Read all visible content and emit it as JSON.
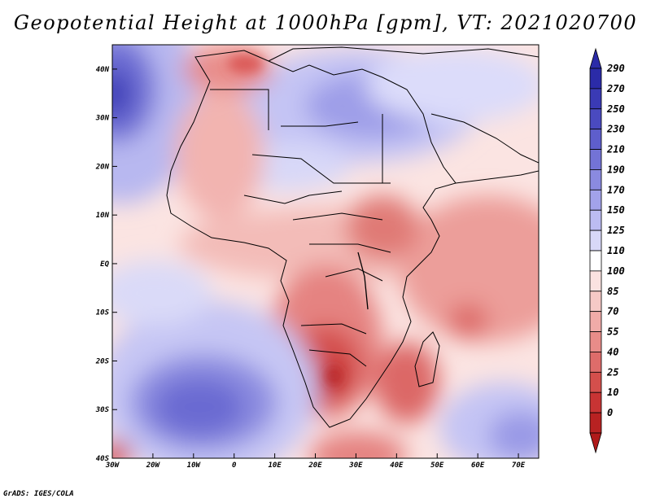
{
  "title": "Geopotential Height at 1000hPa [gpm], VT: 2021020700",
  "footer": "GrADS: IGES/COLA",
  "map": {
    "lon_range": [
      -30,
      75
    ],
    "lat_range": [
      -40,
      45
    ],
    "x_ticks": [
      {
        "lon": -30,
        "label": "30W"
      },
      {
        "lon": -20,
        "label": "20W"
      },
      {
        "lon": -10,
        "label": "10W"
      },
      {
        "lon": 0,
        "label": "0"
      },
      {
        "lon": 10,
        "label": "10E"
      },
      {
        "lon": 20,
        "label": "20E"
      },
      {
        "lon": 30,
        "label": "30E"
      },
      {
        "lon": 40,
        "label": "40E"
      },
      {
        "lon": 50,
        "label": "50E"
      },
      {
        "lon": 60,
        "label": "60E"
      },
      {
        "lon": 70,
        "label": "70E"
      }
    ],
    "y_ticks": [
      {
        "lat": 40,
        "label": "40N"
      },
      {
        "lat": 30,
        "label": "30N"
      },
      {
        "lat": 20,
        "label": "20N"
      },
      {
        "lat": 10,
        "label": "10N"
      },
      {
        "lat": 0,
        "label": "EQ"
      },
      {
        "lat": -10,
        "label": "10S"
      },
      {
        "lat": -20,
        "label": "20S"
      },
      {
        "lat": -30,
        "label": "30S"
      },
      {
        "lat": -40,
        "label": "40S"
      }
    ]
  },
  "colorbar": {
    "levels": [
      {
        "label": "290",
        "color": "#2b2ba8"
      },
      {
        "label": "270",
        "color": "#3a3ab5"
      },
      {
        "label": "250",
        "color": "#4a4ac0"
      },
      {
        "label": "230",
        "color": "#5e5ecc"
      },
      {
        "label": "210",
        "color": "#7373d6"
      },
      {
        "label": "190",
        "color": "#8a8ae0"
      },
      {
        "label": "170",
        "color": "#a2a2ea"
      },
      {
        "label": "150",
        "color": "#bcbcf2"
      },
      {
        "label": "125",
        "color": "#d8d8f8"
      },
      {
        "label": "110",
        "color": "#ffffff"
      },
      {
        "label": "100",
        "color": "#fbe2e0"
      },
      {
        "label": "85",
        "color": "#f6c9c6"
      },
      {
        "label": "70",
        "color": "#f0aba8"
      },
      {
        "label": "55",
        "color": "#e88c89"
      },
      {
        "label": "40",
        "color": "#de6c6a"
      },
      {
        "label": "25",
        "color": "#d44f4c"
      },
      {
        "label": "10",
        "color": "#c83434"
      },
      {
        "label": "0",
        "color": "#b82222"
      }
    ],
    "bottom_color": "#b01a1a"
  }
}
